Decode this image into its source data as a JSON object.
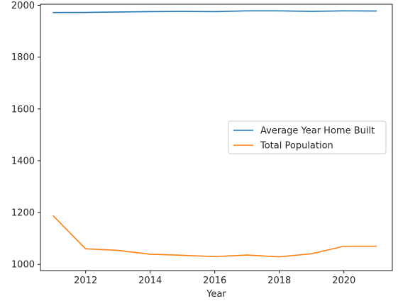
{
  "chart_data": {
    "type": "line",
    "title": "",
    "xlabel": "Year",
    "ylabel": "",
    "xlim": [
      2010.6,
      2021.5
    ],
    "ylim": [
      976,
      2004
    ],
    "xticks": [
      2012,
      2014,
      2016,
      2018,
      2020
    ],
    "yticks": [
      1000,
      1200,
      1400,
      1600,
      1800,
      2000
    ],
    "grid": false,
    "legend_position": "center-right",
    "x": [
      2011,
      2012,
      2013,
      2014,
      2015,
      2016,
      2017,
      2018,
      2019,
      2020,
      2021
    ],
    "series": [
      {
        "name": "Average Year Home Built",
        "color": "#1f77b4",
        "values": [
          1972,
          1972.5,
          1974,
          1975.5,
          1976.5,
          1975.5,
          1978.5,
          1978.5,
          1976.5,
          1978.5,
          1978
        ]
      },
      {
        "name": "Total Population",
        "color": "#ff7f0e",
        "values": [
          1187,
          1060,
          1054,
          1039,
          1035,
          1030,
          1036,
          1029,
          1041,
          1070,
          1070
        ]
      }
    ]
  }
}
